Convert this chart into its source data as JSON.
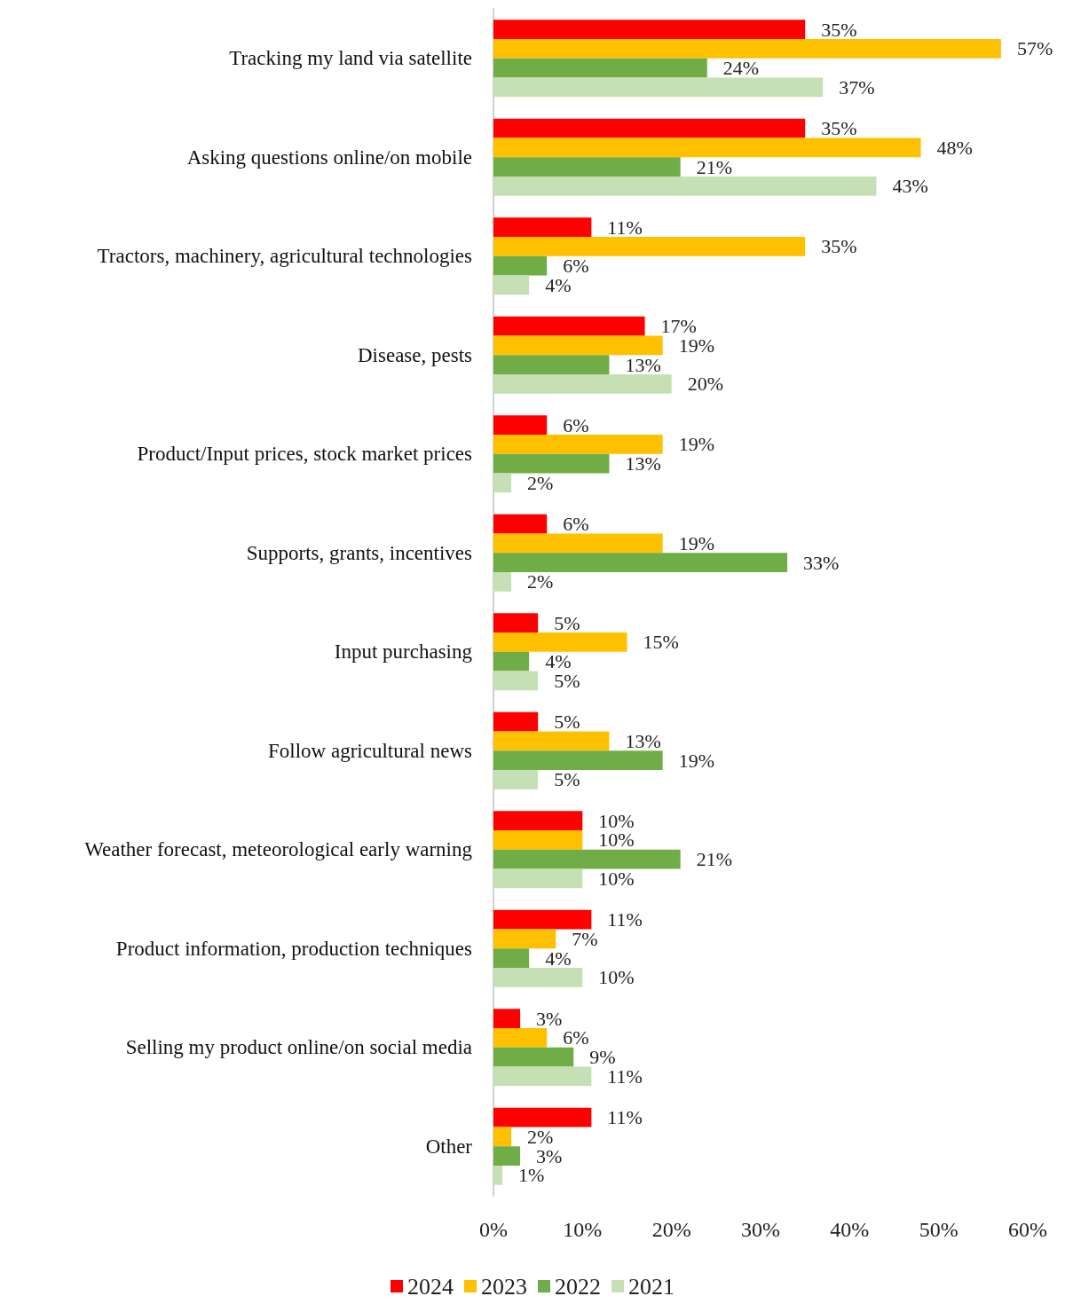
{
  "chart_data": {
    "type": "bar",
    "orientation": "horizontal",
    "categories": [
      "Tracking my land via satellite",
      "Asking questions online/on mobile",
      "Tractors, machinery, agricultural technologies",
      "Disease, pests",
      "Product/Input prices, stock market prices",
      "Supports, grants, incentives",
      "Input purchasing",
      "Follow agricultural news",
      "Weather forecast, meteorological early warning",
      "Product information, production techniques",
      "Selling my product online/on social media",
      "Other"
    ],
    "series": [
      {
        "name": "2024",
        "color": "#ff0000",
        "values": [
          35,
          35,
          11,
          17,
          6,
          6,
          5,
          5,
          10,
          11,
          3,
          11
        ],
        "value_labels": [
          "35%",
          "35%",
          "11%",
          "17%",
          "6%",
          "6%",
          "5%",
          "5%",
          "10%",
          "11%",
          "3%",
          "11%"
        ]
      },
      {
        "name": "2023",
        "color": "#ffc000",
        "values": [
          57,
          48,
          35,
          19,
          19,
          19,
          15,
          13,
          10,
          7,
          6,
          2
        ],
        "value_labels": [
          "57%",
          "48%",
          "35%",
          "19%",
          "19%",
          "19%",
          "15%",
          "13%",
          "10%",
          "7%",
          "6%",
          "2%"
        ]
      },
      {
        "name": "2022",
        "color": "#70ad47",
        "values": [
          24,
          21,
          6,
          13,
          13,
          33,
          4,
          19,
          21,
          4,
          9,
          3
        ],
        "value_labels": [
          "24%",
          "21%",
          "6%",
          "13%",
          "13%",
          "33%",
          "4%",
          "19%",
          "21%",
          "4%",
          "9%",
          "3%"
        ]
      },
      {
        "name": "2021",
        "color": "#c5e0b4",
        "values": [
          37,
          43,
          4,
          20,
          2,
          2,
          5,
          5,
          10,
          10,
          11,
          1
        ],
        "value_labels": [
          "37%",
          "43%",
          "4%",
          "20%",
          "2%",
          "2%",
          "5%",
          "5%",
          "10%",
          "10%",
          "11%",
          "1%"
        ]
      }
    ],
    "xlim": [
      0,
      60
    ],
    "xticks": [
      {
        "value": 0,
        "label": "0%"
      },
      {
        "value": 10,
        "label": "10%"
      },
      {
        "value": 20,
        "label": "20%"
      },
      {
        "value": 30,
        "label": "30%"
      },
      {
        "value": 40,
        "label": "40%"
      },
      {
        "value": 50,
        "label": "50%"
      },
      {
        "value": 60,
        "label": "60%"
      }
    ],
    "legend": "bottom"
  }
}
